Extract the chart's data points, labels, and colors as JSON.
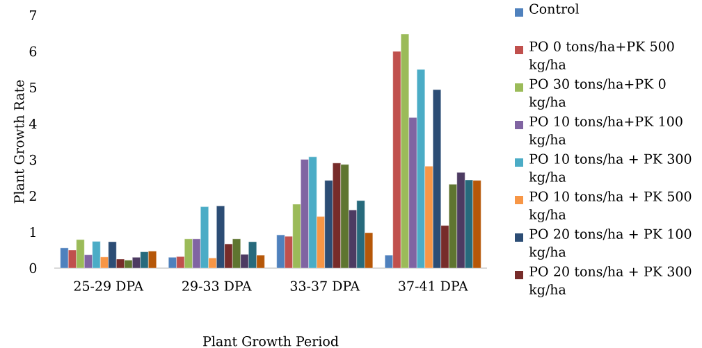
{
  "chart_data": {
    "type": "bar",
    "xlabel": "Plant Growth Period",
    "ylabel": "Plant Growth Rate",
    "categories": [
      "25-29 DPA",
      "29-33 DPA",
      "33-37 DPA",
      "37-41 DPA"
    ],
    "ylim": [
      0,
      7
    ],
    "yticks": [
      0,
      1,
      2,
      3,
      4,
      5,
      6,
      7
    ],
    "legend": "right",
    "series": [
      {
        "name": "Control",
        "color": "#4f81bd",
        "values": [
          0.56,
          0.3,
          0.92,
          0.36
        ]
      },
      {
        "name": "PO 0 tons/ha+PK 500 kg/ha",
        "color": "#c0504d",
        "values": [
          0.5,
          0.32,
          0.88,
          6.0
        ]
      },
      {
        "name": "PO 30 tons/ha+PK 0 kg/ha",
        "color": "#9bbb59",
        "values": [
          0.79,
          0.81,
          1.77,
          6.48
        ]
      },
      {
        "name": "PO 10 tons/ha+PK 100 kg/ha",
        "color": "#8064a2",
        "values": [
          0.37,
          0.81,
          3.01,
          4.17
        ]
      },
      {
        "name": "PO 10 tons/ha + PK 300 kg/ha",
        "color": "#4bacc6",
        "values": [
          0.74,
          1.7,
          3.08,
          5.5
        ]
      },
      {
        "name": "PO 10 tons/ha + PK 500 kg/ha",
        "color": "#f79646",
        "values": [
          0.31,
          0.28,
          1.43,
          2.82
        ]
      },
      {
        "name": "PO 20 tons/ha + PK 100 kg/ha",
        "color": "#2c4d75",
        "values": [
          0.73,
          1.72,
          2.43,
          4.94
        ]
      },
      {
        "name": "PO 20 tons/ha + PK 300 kg/ha",
        "color": "#772c2a",
        "values": [
          0.25,
          0.67,
          2.91,
          1.18
        ]
      },
      {
        "color": "#5f7530",
        "values": [
          0.22,
          0.81,
          2.87,
          2.32
        ]
      },
      {
        "color": "#4d3b62",
        "values": [
          0.3,
          0.38,
          1.61,
          2.65
        ]
      },
      {
        "color": "#276a7c",
        "values": [
          0.45,
          0.73,
          1.87,
          2.44
        ]
      },
      {
        "color": "#b65708",
        "values": [
          0.47,
          0.36,
          0.98,
          2.43
        ]
      }
    ]
  }
}
